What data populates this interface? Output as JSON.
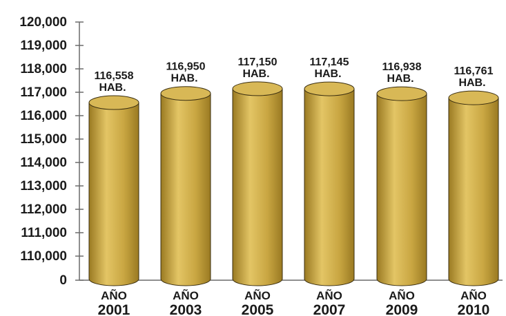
{
  "chart_data": {
    "type": "bar",
    "bar_shape": "cylinder",
    "categories": [
      {
        "line1": "AÑO",
        "line2": "2001"
      },
      {
        "line1": "AÑO",
        "line2": "2003"
      },
      {
        "line1": "AÑO",
        "line2": "2005"
      },
      {
        "line1": "AÑO",
        "line2": "2007"
      },
      {
        "line1": "AÑO",
        "line2": "2009"
      },
      {
        "line1": "AÑO",
        "line2": "2010"
      }
    ],
    "values": [
      116558,
      116950,
      117150,
      117145,
      116938,
      116761
    ],
    "data_labels": [
      {
        "value": "116,558",
        "unit": "HAB."
      },
      {
        "value": "116,950",
        "unit": "HAB."
      },
      {
        "value": "117,150",
        "unit": "HAB."
      },
      {
        "value": "117,145",
        "unit": "HAB."
      },
      {
        "value": "116,938",
        "unit": "HAB."
      },
      {
        "value": "116,761",
        "unit": "HAB."
      }
    ],
    "y_ticks": [
      "0",
      "110,000",
      "111,000",
      "112,000",
      "113,000",
      "114,000",
      "115,000",
      "116,000",
      "117,000",
      "118,000",
      "119,000",
      "120,000"
    ],
    "y_tick_values": [
      0,
      110000,
      111000,
      112000,
      113000,
      114000,
      115000,
      116000,
      117000,
      118000,
      119000,
      120000
    ],
    "y_axis_break": true,
    "title": "",
    "xlabel": "",
    "ylabel": "",
    "grid": false,
    "legend": "none",
    "colors": {
      "bar_body": "#c9a642",
      "bar_highlight": "#e3c565",
      "bar_shadow": "#9a7a22",
      "bar_top": "#d8b856",
      "bar_outline": "#3a2e10",
      "axis": "#6a6a6a",
      "text": "#1a1a1a"
    }
  }
}
